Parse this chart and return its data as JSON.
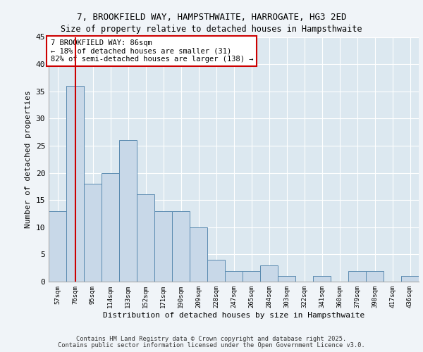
{
  "title1": "7, BROOKFIELD WAY, HAMPSTHWAITE, HARROGATE, HG3 2ED",
  "title2": "Size of property relative to detached houses in Hampsthwaite",
  "xlabel": "Distribution of detached houses by size in Hampsthwaite",
  "ylabel": "Number of detached properties",
  "categories": [
    "57sqm",
    "76sqm",
    "95sqm",
    "114sqm",
    "133sqm",
    "152sqm",
    "171sqm",
    "190sqm",
    "209sqm",
    "228sqm",
    "247sqm",
    "265sqm",
    "284sqm",
    "303sqm",
    "322sqm",
    "341sqm",
    "360sqm",
    "379sqm",
    "398sqm",
    "417sqm",
    "436sqm"
  ],
  "values": [
    13,
    36,
    18,
    20,
    26,
    16,
    13,
    13,
    10,
    4,
    2,
    2,
    3,
    1,
    0,
    1,
    0,
    2,
    2,
    0,
    1
  ],
  "bar_color": "#c8d8e8",
  "bar_edge_color": "#5a8ab0",
  "vline_x_index": 1,
  "vline_color": "#cc0000",
  "ylim": [
    0,
    45
  ],
  "yticks": [
    0,
    5,
    10,
    15,
    20,
    25,
    30,
    35,
    40,
    45
  ],
  "annotation_text": "7 BROOKFIELD WAY: 86sqm\n← 18% of detached houses are smaller (31)\n82% of semi-detached houses are larger (138) →",
  "annotation_box_color": "#ffffff",
  "annotation_box_edge": "#cc0000",
  "footer1": "Contains HM Land Registry data © Crown copyright and database right 2025.",
  "footer2": "Contains public sector information licensed under the Open Government Licence v3.0.",
  "bg_color": "#dce8f0",
  "fig_bg_color": "#f0f4f8",
  "grid_color": "#ffffff"
}
